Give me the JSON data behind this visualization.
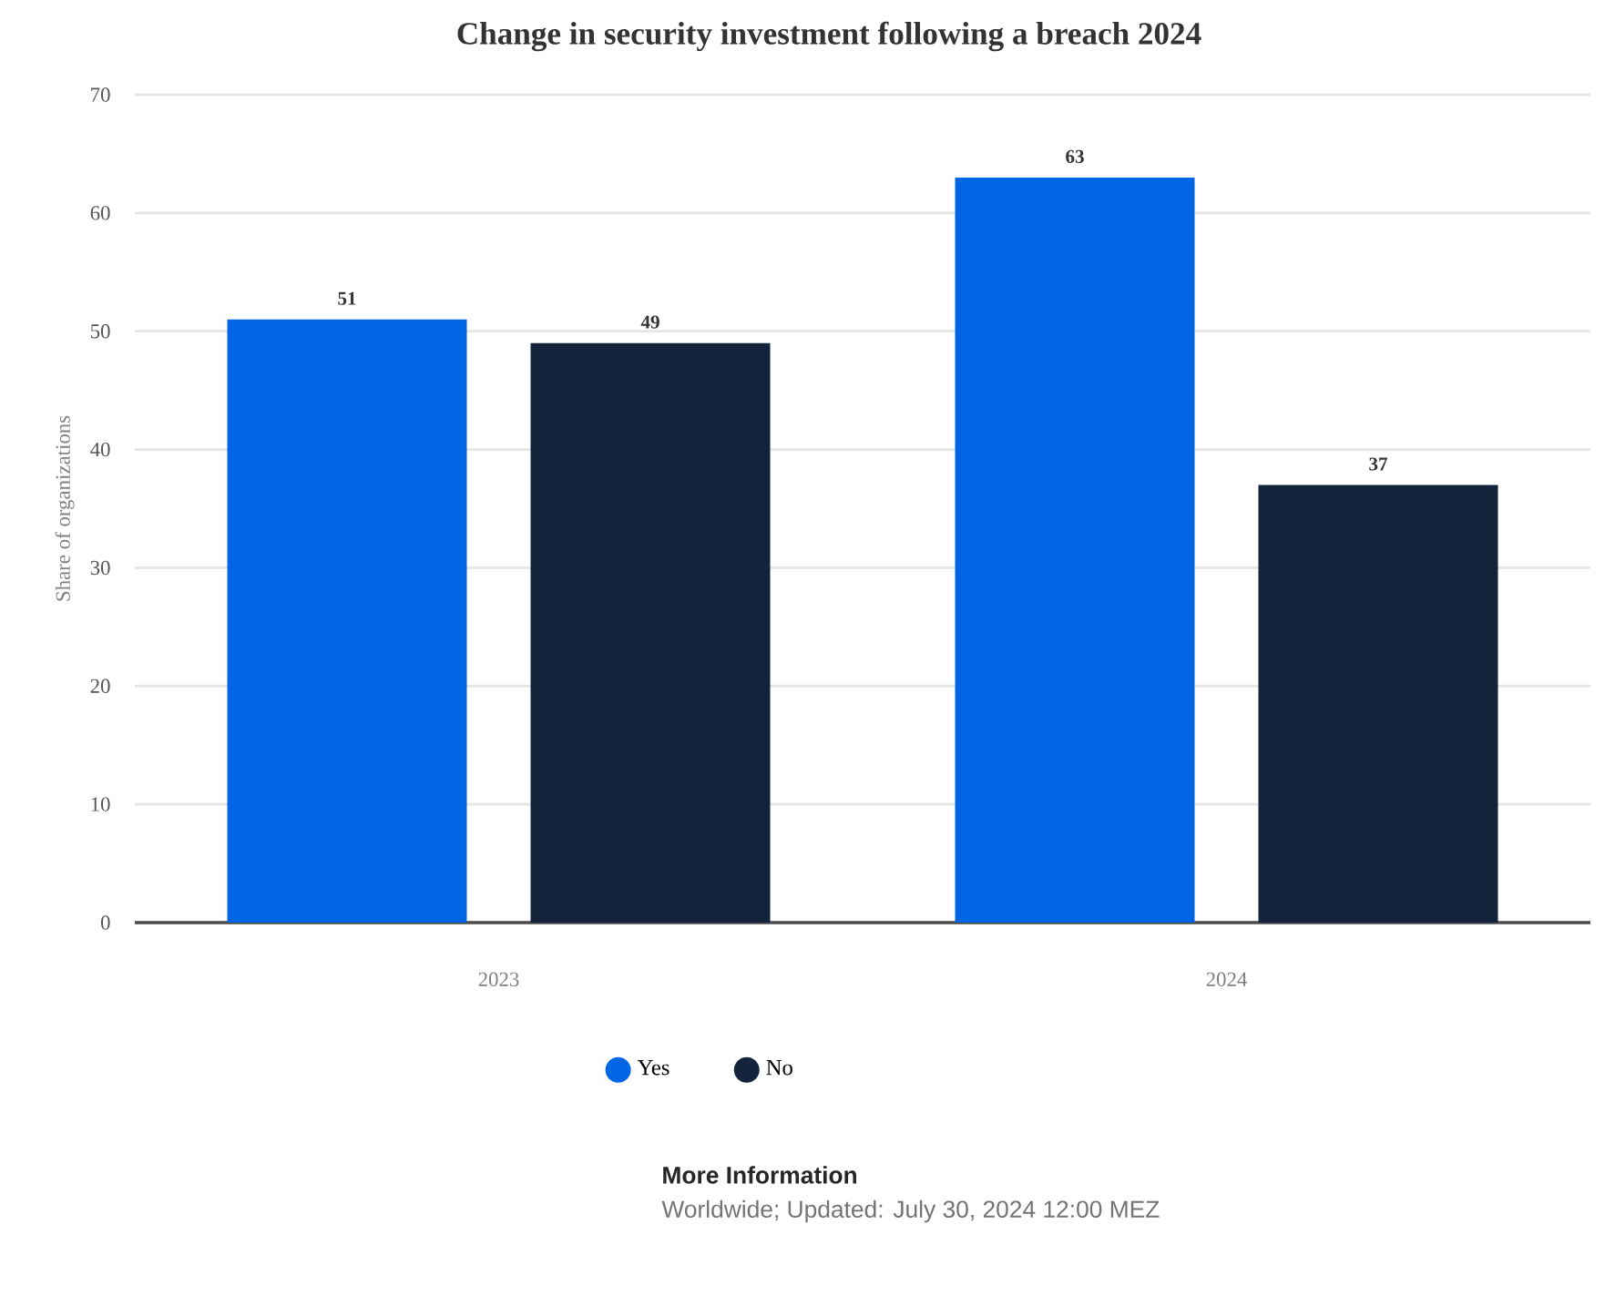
{
  "chart_data": {
    "type": "bar",
    "title": "Change in security investment following a breach 2024",
    "ylabel": "Share of organizations",
    "categories": [
      "2023",
      "2024"
    ],
    "series": [
      {
        "name": "Yes",
        "color": "#0066e5",
        "values": [
          51,
          63
        ]
      },
      {
        "name": "No",
        "color": "#12233b",
        "values": [
          49,
          37
        ]
      }
    ],
    "ylim": [
      0,
      70
    ],
    "yticks": [
      0,
      10,
      20,
      30,
      40,
      50,
      60,
      70
    ],
    "grid": "y",
    "legend": "bottom",
    "data_labels": true,
    "annotations": [
      "More Information",
      "Worldwide; Updated: July 30, 2024 12:00 MEZ"
    ]
  }
}
